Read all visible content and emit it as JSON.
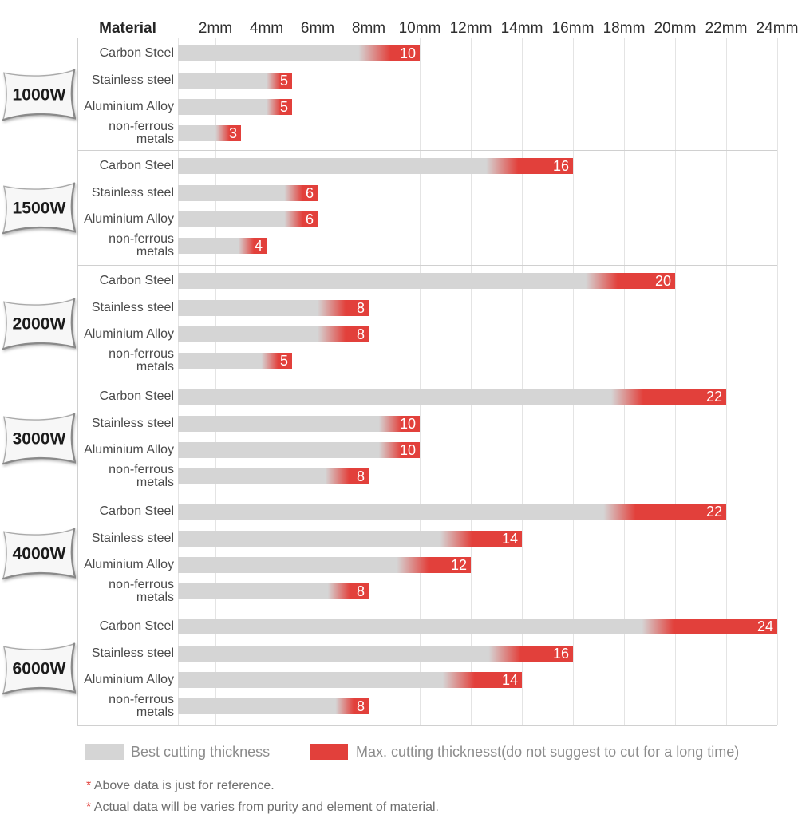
{
  "header": {
    "material_label": "Material"
  },
  "chart_data": {
    "type": "bar",
    "orientation": "horizontal",
    "unit": "mm",
    "title": "",
    "x_axis": {
      "tick_labels": [
        "2mm",
        "4mm",
        "6mm",
        "8mm",
        "10mm",
        "12mm",
        "14mm",
        "16mm",
        "18mm",
        "20mm",
        "22mm",
        "24mm"
      ],
      "tick_values_mm": [
        2,
        4,
        6,
        8,
        10,
        12,
        14,
        16,
        18,
        20,
        22,
        24
      ],
      "range_mm": [
        0,
        24
      ],
      "grid": true
    },
    "materials": [
      "Carbon Steel",
      "Stainless steel",
      "Aluminium Alloy",
      "non-ferrous metals"
    ],
    "groups": [
      {
        "power": "1000W",
        "bars": [
          {
            "material": "Carbon Steel",
            "max_mm": 10,
            "red_from_mm": 7.6
          },
          {
            "material": "Stainless steel",
            "max_mm": 5,
            "red_from_mm": 4.0
          },
          {
            "material": "Aluminium Alloy",
            "max_mm": 5,
            "red_from_mm": 4.0
          },
          {
            "material": "non-ferrous metals",
            "max_mm": 3,
            "red_from_mm": 2.0
          }
        ]
      },
      {
        "power": "1500W",
        "bars": [
          {
            "material": "Carbon Steel",
            "max_mm": 16,
            "red_from_mm": 12.6
          },
          {
            "material": "Stainless steel",
            "max_mm": 6,
            "red_from_mm": 4.7
          },
          {
            "material": "Aluminium Alloy",
            "max_mm": 6,
            "red_from_mm": 4.7
          },
          {
            "material": "non-ferrous metals",
            "max_mm": 4,
            "red_from_mm": 2.9
          }
        ]
      },
      {
        "power": "2000W",
        "bars": [
          {
            "material": "Carbon Steel",
            "max_mm": 20,
            "red_from_mm": 16.5
          },
          {
            "material": "Stainless steel",
            "max_mm": 8,
            "red_from_mm": 6.0
          },
          {
            "material": "Aluminium Alloy",
            "max_mm": 8,
            "red_from_mm": 6.0
          },
          {
            "material": "non-ferrous metals",
            "max_mm": 5,
            "red_from_mm": 3.8
          }
        ]
      },
      {
        "power": "3000W",
        "bars": [
          {
            "material": "Carbon Steel",
            "max_mm": 22,
            "red_from_mm": 17.5
          },
          {
            "material": "Stainless steel",
            "max_mm": 10,
            "red_from_mm": 8.4
          },
          {
            "material": "Aluminium Alloy",
            "max_mm": 10,
            "red_from_mm": 8.4
          },
          {
            "material": "non-ferrous metals",
            "max_mm": 8,
            "red_from_mm": 6.3
          }
        ]
      },
      {
        "power": "4000W",
        "bars": [
          {
            "material": "Carbon Steel",
            "max_mm": 22,
            "red_from_mm": 17.2
          },
          {
            "material": "Stainless steel",
            "max_mm": 14,
            "red_from_mm": 10.8
          },
          {
            "material": "Aluminium Alloy",
            "max_mm": 12,
            "red_from_mm": 9.1
          },
          {
            "material": "non-ferrous metals",
            "max_mm": 8,
            "red_from_mm": 6.4
          }
        ]
      },
      {
        "power": "6000W",
        "bars": [
          {
            "material": "Carbon Steel",
            "max_mm": 24,
            "red_from_mm": 18.7
          },
          {
            "material": "Stainless steel",
            "max_mm": 16,
            "red_from_mm": 12.7
          },
          {
            "material": "Aluminium Alloy",
            "max_mm": 14,
            "red_from_mm": 10.9
          },
          {
            "material": "non-ferrous metals",
            "max_mm": 8,
            "red_from_mm": 6.7
          }
        ]
      }
    ],
    "legend_position": "bottom"
  },
  "legend": {
    "items": [
      {
        "label": "Best cutting thickness",
        "color": "#d5d5d5"
      },
      {
        "label": "Max. cutting thicknesst(do not suggest to cut for a long time)",
        "color": "#e2403b"
      }
    ]
  },
  "footnotes": {
    "marker": "*",
    "lines": [
      "Above data is just for reference.",
      "Actual data will be varies from purity and element of material."
    ]
  },
  "colors": {
    "bar_gray": "#d5d5d5",
    "bar_red": "#e2403b",
    "gridline": "#e4e4e4",
    "separator": "#d0d0d0",
    "badge_fill": "#f7f7f7",
    "badge_edge": "#8a8a8a",
    "footnote_marker": "#e2403b"
  }
}
